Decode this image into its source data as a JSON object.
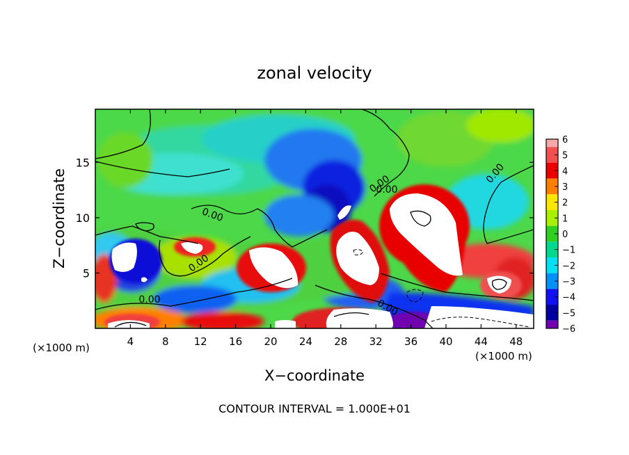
{
  "chart_data": {
    "type": "heatmap",
    "title": "zonal velocity",
    "xlabel": "X−coordinate",
    "ylabel": "Z−coordinate",
    "x_unit_left": "(×1000 m)",
    "x_unit_right": "(×1000 m)",
    "x_ticks": [
      4,
      8,
      12,
      16,
      20,
      24,
      28,
      32,
      36,
      40,
      44,
      48
    ],
    "y_ticks": [
      5,
      10,
      15
    ],
    "xlim": [
      0,
      50
    ],
    "ylim": [
      0,
      19.8
    ],
    "contour_labels": [
      "0.00",
      "0.00",
      "0.00",
      "0.00",
      "0.00",
      "0.00",
      "0.00"
    ],
    "colorbar": {
      "ticks": [
        "6",
        "5",
        "4",
        "3",
        "2",
        "1",
        "0",
        "−1",
        "−2",
        "−3",
        "−4",
        "−5",
        "−6"
      ],
      "range": [
        -6,
        6
      ],
      "colors": {
        "6": "#f4a8a8",
        "5": "#f05050",
        "4": "#e80000",
        "3": "#ff7f00",
        "2": "#ffe600",
        "1": "#a8f000",
        "0": "#30d020",
        "-1": "#00d890",
        "-2": "#00e0f0",
        "-3": "#0090f8",
        "-4": "#1010f0",
        "-5": "#0000a0",
        "-6": "#7000b0"
      }
    },
    "footer": "CONTOUR INTERVAL = 1.000E+01"
  }
}
